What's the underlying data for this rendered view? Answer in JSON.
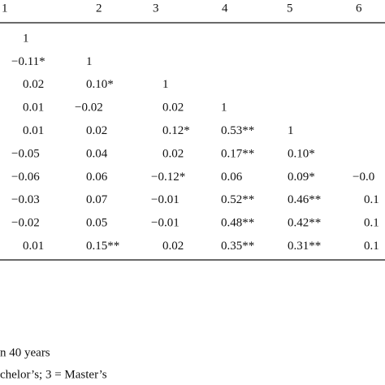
{
  "table": {
    "header": [
      "1",
      "2",
      "3",
      "4",
      "5",
      "6"
    ],
    "rows": [
      [
        "1"
      ],
      [
        "−0.11*",
        "1"
      ],
      [
        "0.02",
        "0.10*",
        "1"
      ],
      [
        "0.01",
        "−0.02",
        "0.02",
        "1"
      ],
      [
        "0.01",
        "0.02",
        "0.12*",
        "0.53**",
        "1"
      ],
      [
        "−0.05",
        "0.04",
        "0.02",
        "0.17**",
        "0.10*"
      ],
      [
        "−0.06",
        "0.06",
        "−0.12*",
        "0.06",
        "0.09*",
        "−0.0"
      ],
      [
        "−0.03",
        "0.07",
        "−0.01",
        "0.52**",
        "0.46**",
        "0.1"
      ],
      [
        "−0.02",
        "0.05",
        "−0.01",
        "0.48**",
        "0.42**",
        "0.1"
      ],
      [
        "0.01",
        "0.15**",
        "0.02",
        "0.35**",
        "0.31**",
        "0.1"
      ]
    ]
  },
  "footnotes": [
    "n 40 years",
    "chelor’s; 3 = Master’s"
  ]
}
